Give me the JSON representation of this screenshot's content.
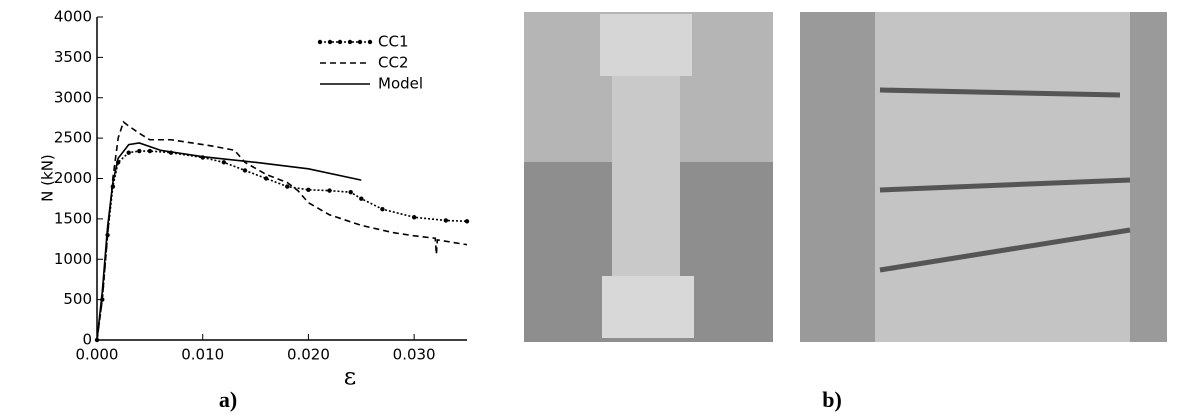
{
  "panel_labels": [
    "a)",
    "b)"
  ],
  "chart_data": {
    "type": "line",
    "y_label": "N  (kN)",
    "x_label": "ε",
    "xlim": [
      0,
      0.035
    ],
    "ylim": [
      0,
      4000
    ],
    "xticks": [
      {
        "value": 0,
        "label": "0.000"
      },
      {
        "value": 0.01,
        "label": "0.010"
      },
      {
        "value": 0.02,
        "label": "0.020"
      },
      {
        "value": 0.03,
        "label": "0.030"
      }
    ],
    "yticks": [
      0,
      500,
      1000,
      1500,
      2000,
      2500,
      3000,
      3500,
      4000
    ],
    "legend": "upper right",
    "grid": false,
    "series": [
      {
        "name": "CC1",
        "color": "#000000",
        "style": "markers",
        "x": [
          0,
          0.0005,
          0.001,
          0.0015,
          0.002,
          0.003,
          0.004,
          0.005,
          0.007,
          0.01,
          0.012,
          0.014,
          0.016,
          0.018,
          0.02,
          0.022,
          0.024,
          0.025,
          0.027,
          0.03,
          0.033,
          0.035
        ],
        "values": [
          0,
          500,
          1300,
          1900,
          2200,
          2320,
          2340,
          2340,
          2320,
          2260,
          2200,
          2100,
          2000,
          1900,
          1860,
          1850,
          1830,
          1750,
          1620,
          1520,
          1480,
          1470
        ]
      },
      {
        "name": "CC2",
        "color": "#000000",
        "style": "dashed",
        "x": [
          0,
          0.0005,
          0.001,
          0.0015,
          0.002,
          0.0025,
          0.003,
          0.004,
          0.005,
          0.007,
          0.009,
          0.011,
          0.013,
          0.014,
          0.016,
          0.018,
          0.019,
          0.02,
          0.022,
          0.025,
          0.028,
          0.03,
          0.032,
          0.0321,
          0.0322,
          0.035
        ],
        "values": [
          0,
          500,
          1300,
          2000,
          2500,
          2700,
          2650,
          2560,
          2480,
          2480,
          2440,
          2400,
          2350,
          2200,
          2050,
          1950,
          1850,
          1700,
          1550,
          1420,
          1330,
          1290,
          1260,
          1060,
          1240,
          1180
        ]
      },
      {
        "name": "Model",
        "color": "#000000",
        "style": "solid",
        "x": [
          0,
          0.0005,
          0.001,
          0.0015,
          0.002,
          0.003,
          0.004,
          0.006,
          0.01,
          0.015,
          0.02,
          0.025
        ],
        "values": [
          0,
          600,
          1400,
          1950,
          2250,
          2420,
          2440,
          2350,
          2270,
          2200,
          2120,
          1980
        ]
      }
    ]
  }
}
